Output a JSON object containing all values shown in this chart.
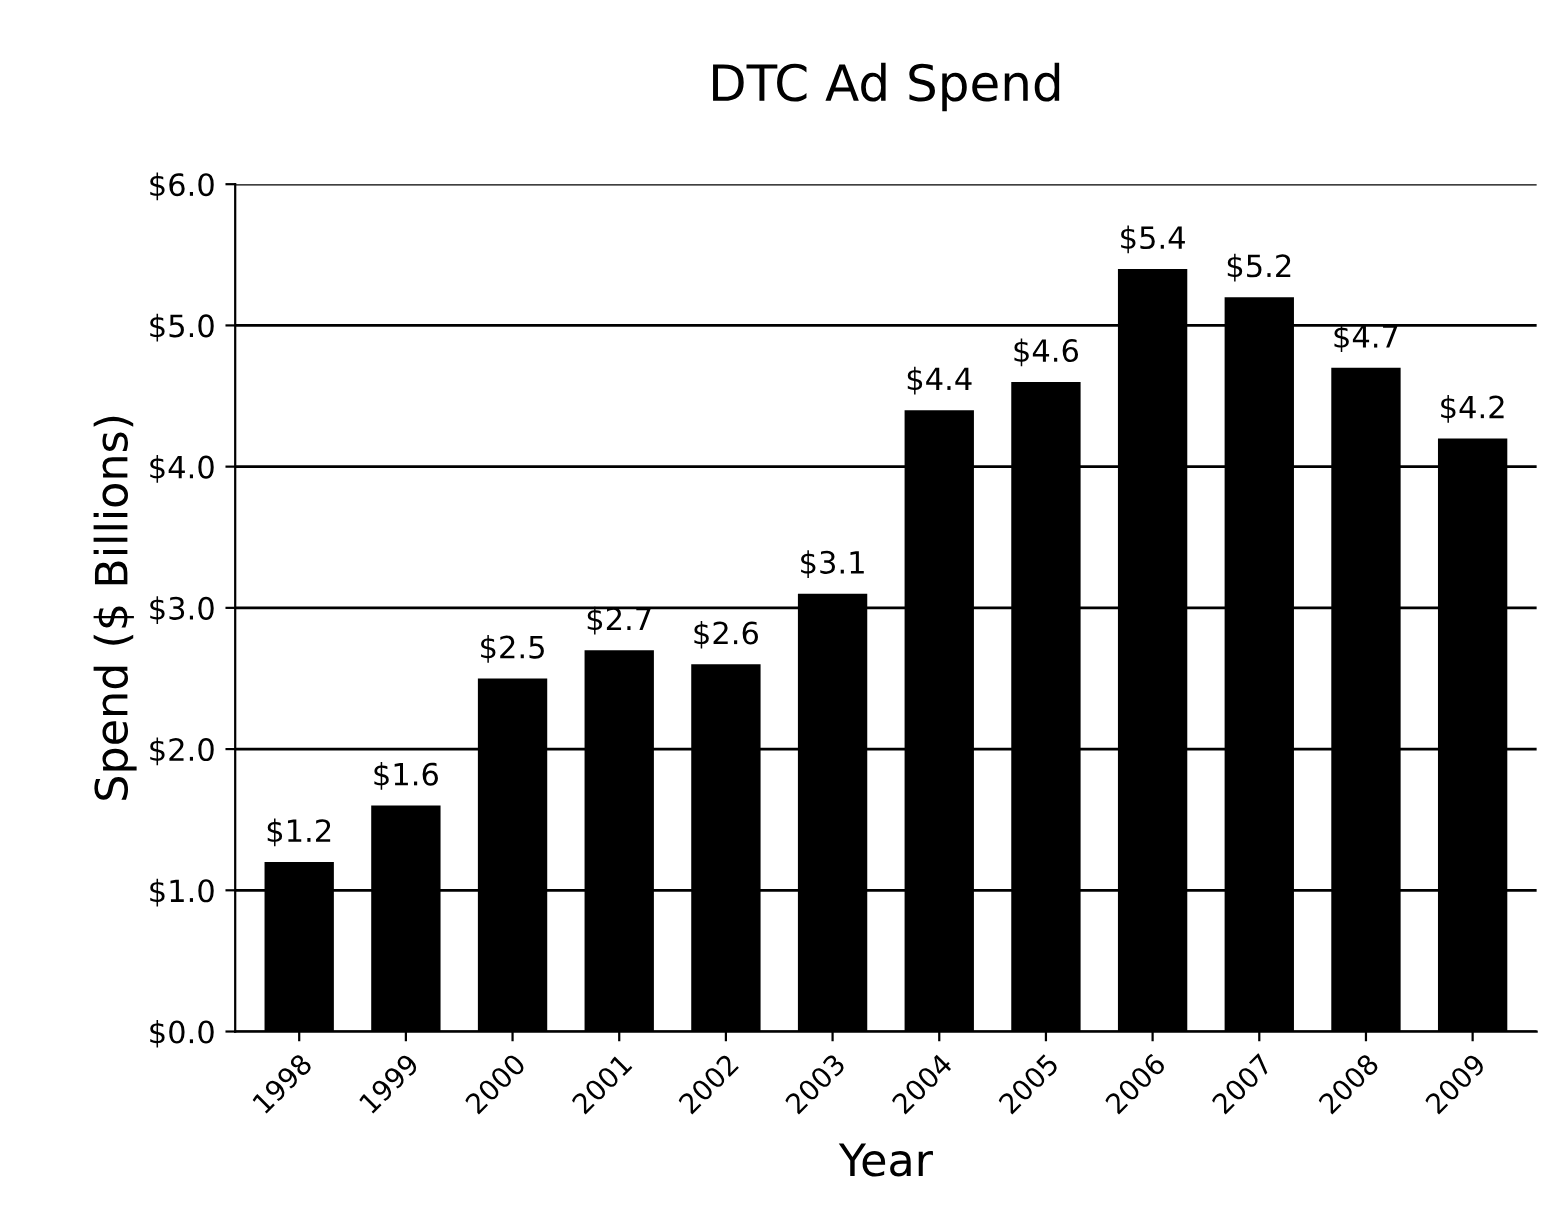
{
  "chart_data": {
    "type": "bar",
    "title": "DTC Ad Spend",
    "xlabel": "Year",
    "ylabel": "Spend ($ Billions)",
    "categories": [
      "1998",
      "1999",
      "2000",
      "2001",
      "2002",
      "2003",
      "2004",
      "2005",
      "2006",
      "2007",
      "2008",
      "2009"
    ],
    "values": [
      1.2,
      1.6,
      2.5,
      2.7,
      2.6,
      3.1,
      4.4,
      4.6,
      5.4,
      5.2,
      4.7,
      4.2
    ],
    "value_labels": [
      "$1.2",
      "$1.6",
      "$2.5",
      "$2.7",
      "$2.6",
      "$3.1",
      "$4.4",
      "$4.6",
      "$5.4",
      "$5.2",
      "$4.7",
      "$4.2"
    ],
    "color": "#000000",
    "ylim": [
      0,
      6
    ],
    "yticks": [
      {
        "value": 0,
        "label": "$0.0"
      },
      {
        "value": 1,
        "label": "$1.0"
      },
      {
        "value": 2,
        "label": "$2.0"
      },
      {
        "value": 3,
        "label": "$3.0"
      },
      {
        "value": 4,
        "label": "$4.0"
      },
      {
        "value": 5,
        "label": "$5.0"
      },
      {
        "value": 6,
        "label": "$6.0"
      }
    ],
    "grid": "y",
    "legend": false
  }
}
